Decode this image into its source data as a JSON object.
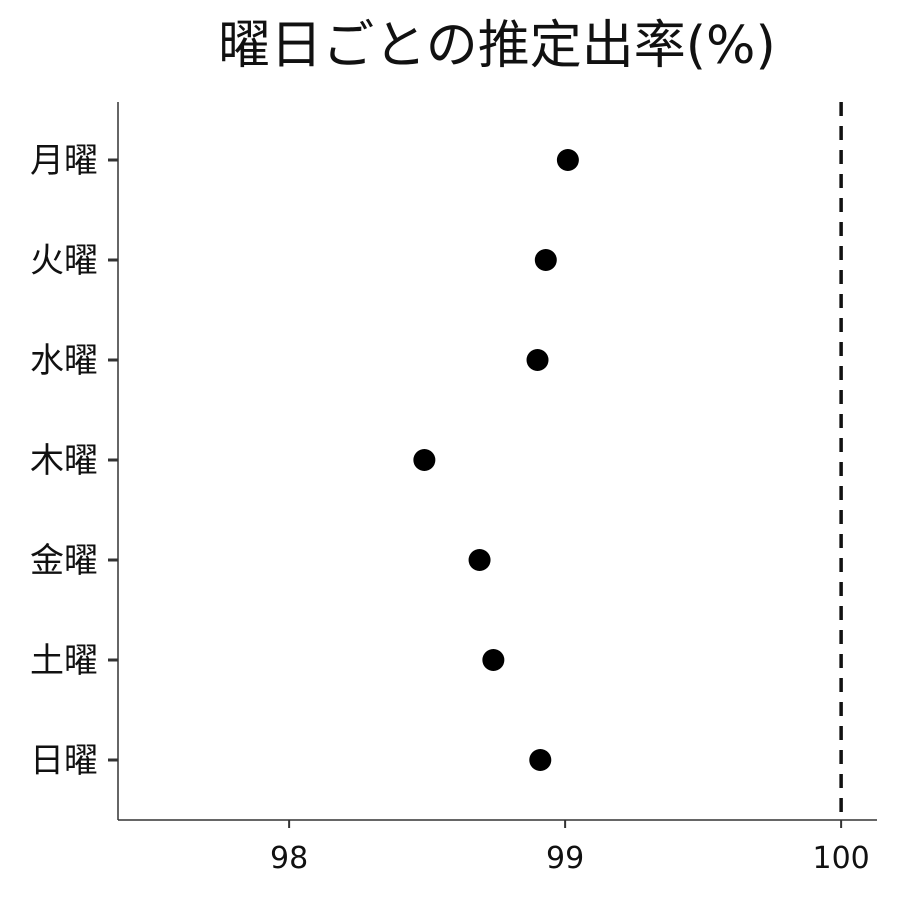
{
  "chart_data": {
    "type": "scatter",
    "title": "曜日ごとの推定出率(%)",
    "xlabel": "",
    "ylabel": "",
    "categories": [
      "月曜",
      "火曜",
      "水曜",
      "木曜",
      "金曜",
      "土曜",
      "日曜"
    ],
    "values": [
      99.01,
      98.93,
      98.9,
      98.49,
      98.69,
      98.74,
      98.91
    ],
    "xlim": [
      97.38,
      100.13
    ],
    "xticks": [
      98,
      99,
      100
    ],
    "xtick_labels": [
      "98",
      "99",
      "100"
    ],
    "reference_line": {
      "x": 100,
      "style": "dashed",
      "color": "#111111"
    },
    "point_color": "#000000",
    "grid": false,
    "legend": "none"
  }
}
